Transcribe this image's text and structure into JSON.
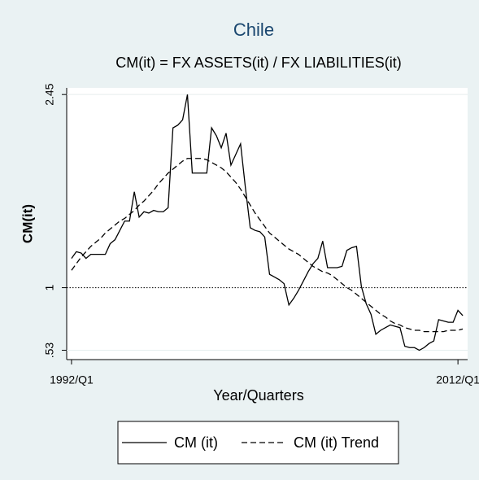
{
  "chart_data": {
    "type": "line",
    "title": "Chile",
    "subtitle": "CM(it) = FX ASSETS(it) / FX LIABILITIES(it)",
    "x_label": "Year/Quarters",
    "y_label": "CM(it)",
    "x": [
      1992,
      1992.25,
      1992.5,
      1992.75,
      1993,
      1993.25,
      1993.5,
      1993.75,
      1994,
      1994.25,
      1994.5,
      1994.75,
      1995,
      1995.25,
      1995.5,
      1995.75,
      1996,
      1996.25,
      1996.5,
      1996.75,
      1997,
      1997.25,
      1997.5,
      1997.75,
      1998,
      1998.25,
      1998.5,
      1998.75,
      1999,
      1999.25,
      1999.5,
      1999.75,
      2000,
      2000.25,
      2000.5,
      2000.75,
      2001,
      2001.25,
      2001.5,
      2001.75,
      2002,
      2002.25,
      2002.5,
      2002.75,
      2003,
      2003.25,
      2003.5,
      2003.75,
      2004,
      2004.25,
      2004.5,
      2004.75,
      2005,
      2005.25,
      2005.5,
      2005.75,
      2006,
      2006.25,
      2006.5,
      2006.75,
      2007,
      2007.25,
      2007.5,
      2007.75,
      2008,
      2008.25,
      2008.5,
      2008.75,
      2009,
      2009.25,
      2009.5,
      2009.75,
      2010,
      2010.25,
      2010.5,
      2010.75,
      2011,
      2011.25,
      2011.5,
      2011.75,
      2012,
      2012.25
    ],
    "series": [
      {
        "name": "CM (it)",
        "color": "#000000",
        "dash": "solid",
        "values": [
          1.22,
          1.27,
          1.26,
          1.22,
          1.25,
          1.25,
          1.25,
          1.25,
          1.33,
          1.36,
          1.43,
          1.5,
          1.5,
          1.72,
          1.53,
          1.57,
          1.56,
          1.58,
          1.57,
          1.57,
          1.6,
          2.2,
          2.22,
          2.26,
          2.45,
          1.86,
          1.86,
          1.86,
          1.86,
          2.2,
          2.14,
          2.05,
          2.16,
          1.92,
          2.0,
          2.08,
          1.75,
          1.45,
          1.43,
          1.42,
          1.38,
          1.1,
          1.08,
          1.06,
          1.03,
          0.87,
          0.92,
          0.98,
          1.05,
          1.12,
          1.18,
          1.22,
          1.35,
          1.15,
          1.15,
          1.15,
          1.16,
          1.28,
          1.3,
          1.31,
          1.01,
          0.88,
          0.8,
          0.65,
          0.68,
          0.7,
          0.72,
          0.71,
          0.7,
          0.56,
          0.55,
          0.55,
          0.53,
          0.55,
          0.58,
          0.6,
          0.76,
          0.75,
          0.74,
          0.74,
          0.83,
          0.79
        ]
      },
      {
        "name": "CM (it) Trend",
        "color": "#000000",
        "dash": "dashed",
        "values": [
          1.13,
          1.18,
          1.23,
          1.27,
          1.31,
          1.34,
          1.37,
          1.41,
          1.44,
          1.47,
          1.5,
          1.52,
          1.55,
          1.58,
          1.62,
          1.65,
          1.69,
          1.73,
          1.78,
          1.82,
          1.86,
          1.89,
          1.92,
          1.95,
          1.97,
          1.97,
          1.97,
          1.97,
          1.96,
          1.94,
          1.92,
          1.9,
          1.87,
          1.83,
          1.79,
          1.74,
          1.68,
          1.62,
          1.56,
          1.51,
          1.46,
          1.41,
          1.38,
          1.35,
          1.32,
          1.29,
          1.27,
          1.25,
          1.22,
          1.19,
          1.16,
          1.14,
          1.12,
          1.11,
          1.09,
          1.06,
          1.03,
          1.0,
          0.98,
          0.95,
          0.92,
          0.89,
          0.86,
          0.83,
          0.8,
          0.78,
          0.75,
          0.73,
          0.72,
          0.7,
          0.69,
          0.68,
          0.68,
          0.67,
          0.67,
          0.67,
          0.67,
          0.67,
          0.68,
          0.68,
          0.68,
          0.69
        ]
      }
    ],
    "xlim": [
      1991.75,
      2012.5
    ],
    "xticks": [
      {
        "value": 1992,
        "label": "1992/Q1"
      },
      {
        "value": 2012,
        "label": "2012/Q1"
      }
    ],
    "ylim": [
      0.46,
      2.5
    ],
    "yticks": [
      {
        "value": 0.53,
        "label": ".53"
      },
      1,
      2.45
    ],
    "reference_line": 1,
    "legend": "bottom"
  }
}
